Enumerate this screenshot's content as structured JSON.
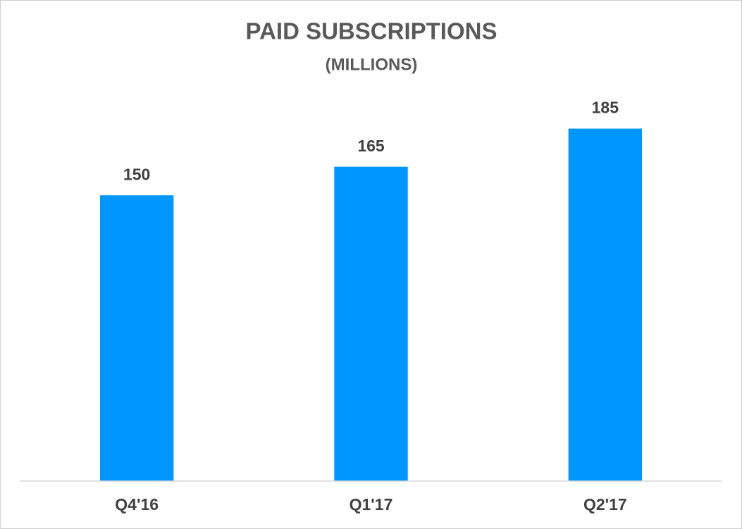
{
  "chart_data": {
    "type": "bar",
    "title": "PAID SUBSCRIPTIONS",
    "subtitle": "(MILLIONS)",
    "categories": [
      "Q4'16",
      "Q1'17",
      "Q2'17"
    ],
    "values": [
      150,
      165,
      185
    ],
    "color": "#0096ff",
    "ylim": [
      0,
      200
    ],
    "grid": false
  }
}
